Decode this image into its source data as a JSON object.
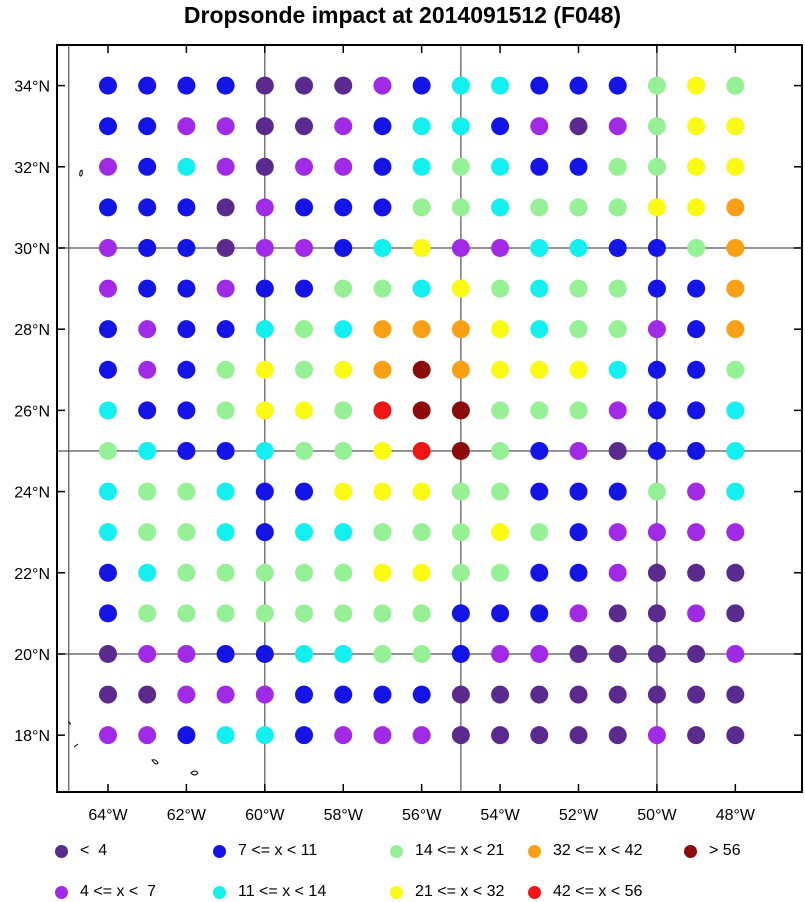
{
  "title": "Dropsonde impact at 2014091512 (F048)",
  "map": {
    "lon_range": [
      -65.3,
      -46.3
    ],
    "lat_range": [
      16.6,
      35.0
    ],
    "lon_ticks": [
      "64°W",
      "62°W",
      "60°W",
      "58°W",
      "56°W",
      "54°W",
      "52°W",
      "50°W",
      "48°W"
    ],
    "lon_tick_values": [
      -64,
      -62,
      -60,
      -58,
      -56,
      -54,
      -52,
      -50,
      -48
    ],
    "lat_ticks": [
      "34°N",
      "32°N",
      "30°N",
      "28°N",
      "26°N",
      "24°N",
      "22°N",
      "20°N",
      "18°N"
    ],
    "lat_tick_values": [
      34,
      32,
      30,
      28,
      26,
      24,
      22,
      20,
      18
    ],
    "grid_lons": [
      -65,
      -60,
      -55,
      -50
    ],
    "grid_lats": [
      35,
      30,
      25,
      20
    ]
  },
  "legend": [
    {
      "label": "<  4",
      "color": "#5b2a8e"
    },
    {
      "label": "4 <= x <  7",
      "color": "#a02ae6"
    },
    {
      "label": "7 <= x < 11",
      "color": "#1414e6"
    },
    {
      "label": "11 <= x < 14",
      "color": "#14f0f0"
    },
    {
      "label": "14 <= x < 21",
      "color": "#96f096"
    },
    {
      "label": "21 <= x < 32",
      "color": "#fafa14"
    },
    {
      "label": "32 <= x < 42",
      "color": "#faa014"
    },
    {
      "label": "42 <= x < 56",
      "color": "#f01414"
    },
    {
      "label": "> 56",
      "color": "#8c0a0a"
    }
  ],
  "chart_data": {
    "type": "scatter",
    "title": "Dropsonde impact at 2014091512 (F048)",
    "lons": [
      -64,
      -63,
      -62,
      -61,
      -60,
      -59,
      -58,
      -57,
      -56,
      -55,
      -54,
      -53,
      -52,
      -51,
      -50,
      -49,
      -48
    ],
    "lats": [
      34,
      33,
      32,
      31,
      30,
      29,
      28,
      27,
      26,
      25,
      24,
      23,
      22,
      21,
      20,
      19,
      18
    ],
    "category_index_note": "values are legend bin indices 0-8",
    "rows": [
      [
        2,
        2,
        2,
        2,
        0,
        0,
        0,
        1,
        2,
        3,
        3,
        2,
        2,
        2,
        4,
        5,
        4
      ],
      [
        2,
        2,
        1,
        1,
        0,
        0,
        1,
        2,
        3,
        3,
        2,
        1,
        0,
        1,
        4,
        5,
        5
      ],
      [
        1,
        2,
        3,
        1,
        0,
        1,
        1,
        2,
        3,
        4,
        3,
        2,
        2,
        4,
        4,
        5,
        5
      ],
      [
        2,
        2,
        2,
        0,
        1,
        2,
        2,
        2,
        4,
        4,
        3,
        4,
        4,
        4,
        5,
        5,
        6
      ],
      [
        1,
        2,
        2,
        0,
        1,
        1,
        2,
        3,
        5,
        1,
        1,
        3,
        3,
        2,
        2,
        4,
        6
      ],
      [
        1,
        2,
        2,
        1,
        2,
        2,
        4,
        4,
        3,
        5,
        4,
        3,
        4,
        4,
        2,
        2,
        6
      ],
      [
        2,
        1,
        2,
        2,
        3,
        4,
        3,
        6,
        6,
        6,
        5,
        3,
        4,
        4,
        1,
        2,
        6
      ],
      [
        2,
        1,
        2,
        4,
        5,
        4,
        5,
        6,
        8,
        6,
        5,
        5,
        5,
        3,
        2,
        2,
        4
      ],
      [
        3,
        2,
        2,
        4,
        5,
        5,
        4,
        7,
        8,
        8,
        4,
        4,
        4,
        1,
        2,
        2,
        3
      ],
      [
        4,
        3,
        2,
        2,
        3,
        4,
        4,
        5,
        7,
        8,
        4,
        2,
        1,
        0,
        2,
        2,
        3
      ],
      [
        3,
        4,
        4,
        3,
        2,
        2,
        5,
        5,
        5,
        4,
        4,
        2,
        2,
        2,
        4,
        1,
        3
      ],
      [
        3,
        4,
        4,
        3,
        2,
        3,
        3,
        4,
        4,
        4,
        5,
        4,
        2,
        1,
        1,
        1,
        1
      ],
      [
        2,
        3,
        4,
        4,
        4,
        4,
        4,
        5,
        5,
        4,
        4,
        2,
        2,
        1,
        0,
        0,
        0
      ],
      [
        2,
        4,
        4,
        4,
        4,
        4,
        4,
        4,
        4,
        2,
        2,
        2,
        1,
        0,
        0,
        1,
        0
      ],
      [
        0,
        1,
        1,
        2,
        2,
        3,
        3,
        4,
        4,
        2,
        1,
        1,
        0,
        0,
        0,
        0,
        1
      ],
      [
        0,
        0,
        1,
        1,
        1,
        2,
        2,
        2,
        2,
        0,
        0,
        0,
        0,
        0,
        0,
        0,
        0
      ],
      [
        1,
        1,
        2,
        3,
        3,
        2,
        1,
        1,
        1,
        0,
        0,
        0,
        0,
        0,
        1,
        0,
        0
      ]
    ]
  }
}
